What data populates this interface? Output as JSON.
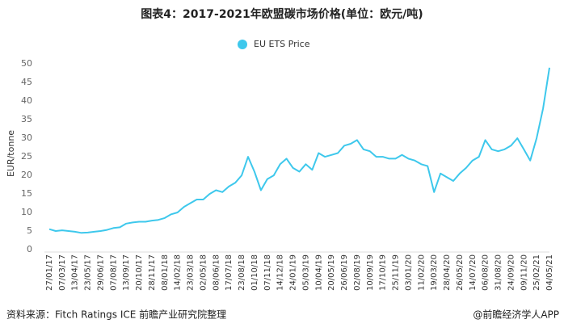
{
  "chart_data": {
    "type": "line",
    "title": "图表4：2017-2021年欧盟碳市场价格(单位：欧元/吨)",
    "y_label": "EUR/tonne",
    "source": "资料来源：Fitch Ratings ICE 前瞻产业研究院整理",
    "credit": "@前瞻经济学人APP",
    "categories": [
      "27/01/17",
      null,
      "07/03/17",
      null,
      "13/04/17",
      null,
      "23/05/17",
      null,
      "29/06/17",
      null,
      "07/08/17",
      null,
      "13/09/17",
      null,
      "20/10/17",
      null,
      "28/11/17",
      null,
      "08/01/18",
      null,
      "14/02/18",
      null,
      "23/03/18",
      null,
      "02/05/18",
      null,
      "08/06/18",
      null,
      "17/07/18",
      null,
      "23/08/18",
      null,
      "01/10/18",
      null,
      "07/11/18",
      null,
      "14/12/18",
      null,
      "24/01/19",
      null,
      "05/03/19",
      null,
      "10/04/19",
      null,
      "20/05/19",
      null,
      "26/06/19",
      null,
      "02/08/19",
      null,
      "10/09/19",
      null,
      "17/10/19",
      null,
      "25/11/19",
      null,
      "03/01/20",
      null,
      "11/02/20",
      null,
      "19/03/20",
      null,
      "28/04/20",
      null,
      "26/05/20",
      null,
      "14/07/20",
      null,
      "06/08/20",
      null,
      "31/08/20",
      null,
      "24/09/20",
      null,
      "09/11/20",
      null,
      "25/02/21",
      null,
      "04/05/21"
    ],
    "series": [
      {
        "name": "EU ETS Price",
        "color": "#3ec8ec",
        "values": [
          5.5,
          5.0,
          5.2,
          5.0,
          4.8,
          4.5,
          4.6,
          4.8,
          5.0,
          5.3,
          5.8,
          6.0,
          7.0,
          7.3,
          7.5,
          7.5,
          7.8,
          8.0,
          8.5,
          9.5,
          10.0,
          11.5,
          12.5,
          13.5,
          13.5,
          15.0,
          16.0,
          15.5,
          17.0,
          18.0,
          20.0,
          25.0,
          21.0,
          16.0,
          19.0,
          20.0,
          23.0,
          24.5,
          22.0,
          21.0,
          23.0,
          21.5,
          26.0,
          25.0,
          25.5,
          26.0,
          28.0,
          28.5,
          29.5,
          27.0,
          26.5,
          25.0,
          25.0,
          24.5,
          24.5,
          25.5,
          24.5,
          24.0,
          23.0,
          22.5,
          15.5,
          20.5,
          19.5,
          18.5,
          20.5,
          22.0,
          24.0,
          25.0,
          29.5,
          27.0,
          26.5,
          27.0,
          28.0,
          30.0,
          27.0,
          24.0,
          30.0,
          38.0,
          49.0
        ]
      }
    ],
    "ylim": [
      0,
      52
    ],
    "yticks": [
      0,
      5,
      10,
      15,
      20,
      25,
      30,
      35,
      40,
      45,
      50
    ],
    "grid": false,
    "legend": "top"
  }
}
